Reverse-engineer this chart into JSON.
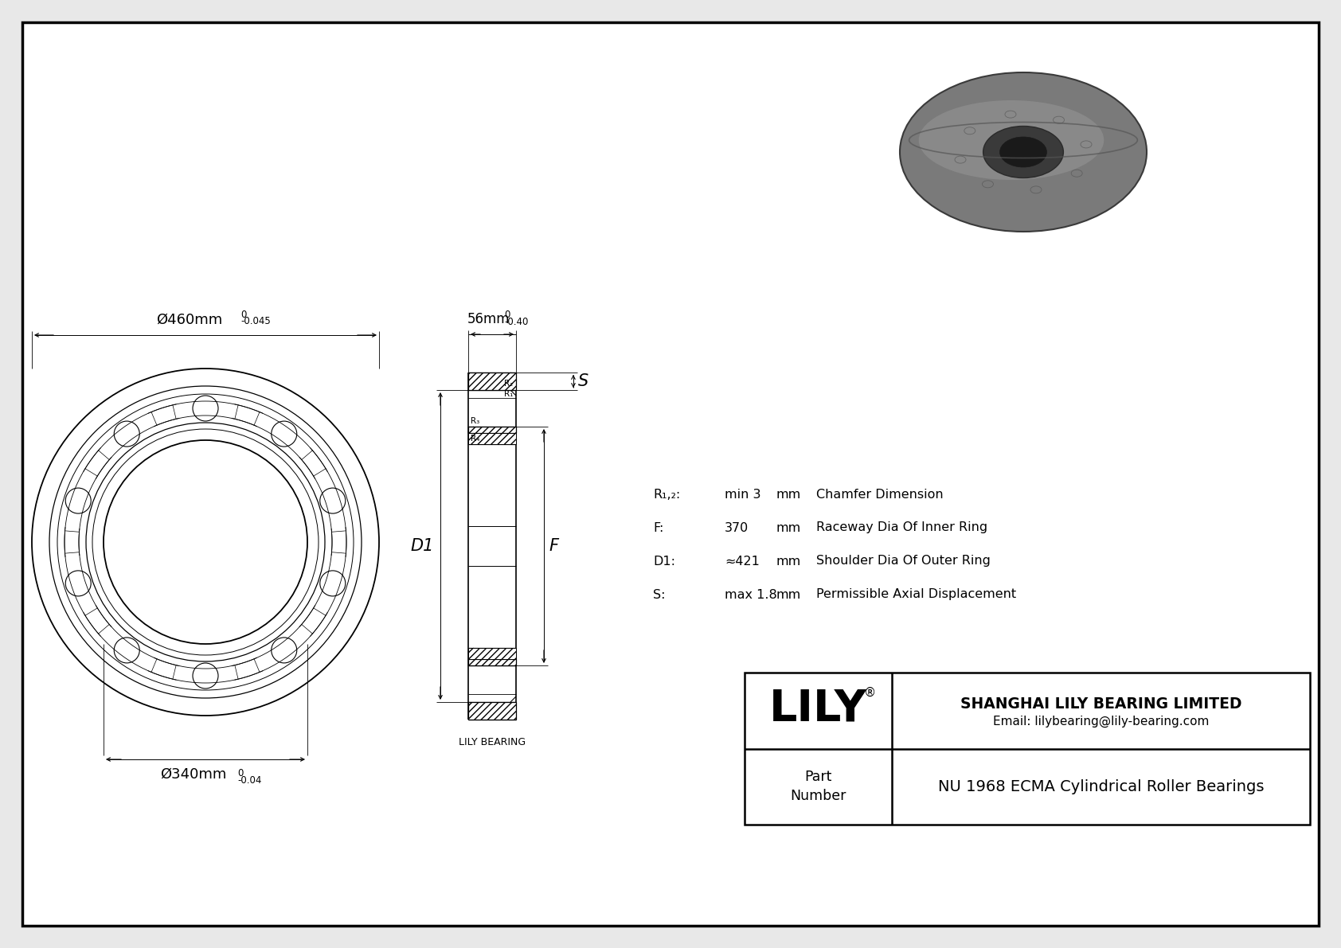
{
  "bg_color": "#e8e8e8",
  "drawing_bg": "#ffffff",
  "border_color": "#000000",
  "line_color": "#000000",
  "part_number": "NU 1968 ECMA Cylindrical Roller Bearings",
  "company": "SHANGHAI LILY BEARING LIMITED",
  "email": "Email: lilybearing@lily-bearing.com",
  "dims": {
    "outer_dia_label": "Ø460mm",
    "outer_dia_tol_upper": "0",
    "outer_dia_tol_lower": "-0.045",
    "inner_dia_label": "Ø340mm",
    "inner_dia_tol_upper": "0",
    "inner_dia_tol_lower": "-0.04",
    "width_label": "56mm",
    "width_tol_upper": "0",
    "width_tol_lower": "-0.40"
  },
  "specs": [
    {
      "symbol": "R₁,₂:",
      "value": "min 3",
      "unit": "mm",
      "desc": "Chamfer Dimension"
    },
    {
      "symbol": "F:",
      "value": "370",
      "unit": "mm",
      "desc": "Raceway Dia Of Inner Ring"
    },
    {
      "symbol": "D1:",
      "value": "≈421",
      "unit": "mm",
      "desc": "Shoulder Dia Of Outer Ring"
    },
    {
      "symbol": "S:",
      "value": "max 1.8",
      "unit": "mm",
      "desc": "Permissible Axial Displacement"
    }
  ]
}
